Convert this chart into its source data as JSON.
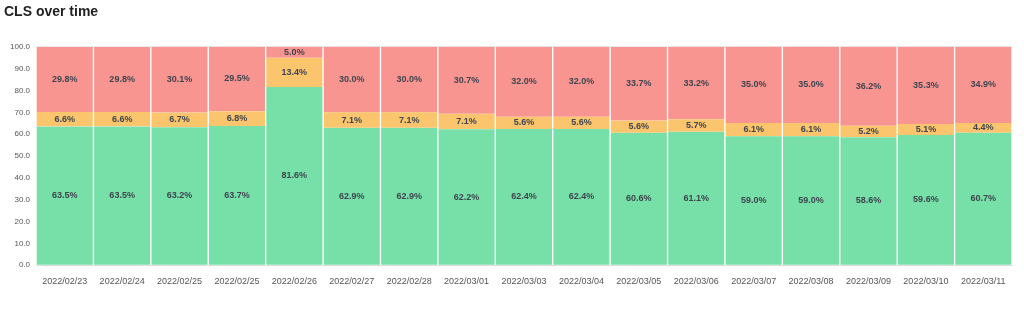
{
  "chart_data": {
    "type": "bar",
    "title": "CLS over time",
    "stacked": true,
    "grid": "y",
    "legend": false,
    "categories": [
      "2022/02/23",
      "2022/02/24",
      "2022/02/25",
      "2022/02/25",
      "2022/02/26",
      "2022/02/27",
      "2022/02/28",
      "2022/03/01",
      "2022/03/03",
      "2022/03/04",
      "2022/03/05",
      "2022/03/06",
      "2022/03/07",
      "2022/03/08",
      "2022/03/09",
      "2022/03/10",
      "2022/03/11"
    ],
    "ylim": [
      0,
      100
    ],
    "yticks": [
      {
        "value": 0,
        "label": "0.0"
      },
      {
        "value": 10,
        "label": "10.0"
      },
      {
        "value": 20,
        "label": "20.0"
      },
      {
        "value": 30,
        "label": "30.0"
      },
      {
        "value": 40,
        "label": "40.0"
      },
      {
        "value": 50,
        "label": "50.0"
      },
      {
        "value": 60,
        "label": "60.0"
      },
      {
        "value": 70,
        "label": "70.0"
      },
      {
        "value": 80,
        "label": "80.0"
      },
      {
        "value": 90,
        "label": "90.0"
      },
      {
        "value": 100,
        "label": "100.0"
      }
    ],
    "series": [
      {
        "color": "#76e0a8",
        "values": [
          63.5,
          63.5,
          63.2,
          63.7,
          81.6,
          62.9,
          62.9,
          62.2,
          62.4,
          62.4,
          60.6,
          61.1,
          59.0,
          59.0,
          58.6,
          59.6,
          60.7
        ],
        "value_labels": [
          "63.5%",
          "63.5%",
          "63.2%",
          "63.7%",
          "81.6%",
          "62.9%",
          "62.9%",
          "62.2%",
          "62.4%",
          "62.4%",
          "60.6%",
          "61.1%",
          "59.0%",
          "59.0%",
          "58.6%",
          "59.6%",
          "60.7%"
        ]
      },
      {
        "color": "#fbc56d",
        "values": [
          6.6,
          6.6,
          6.7,
          6.8,
          13.4,
          7.1,
          7.1,
          7.1,
          5.6,
          5.6,
          5.6,
          5.7,
          6.1,
          6.1,
          5.2,
          5.1,
          4.4
        ],
        "value_labels": [
          "6.6%",
          "6.6%",
          "6.7%",
          "6.8%",
          "13.4%",
          "7.1%",
          "7.1%",
          "7.1%",
          "5.6%",
          "5.6%",
          "5.6%",
          "5.7%",
          "6.1%",
          "6.1%",
          "5.2%",
          "5.1%",
          "4.4%"
        ]
      },
      {
        "color": "#f99590",
        "values": [
          29.8,
          29.8,
          30.1,
          29.5,
          5.0,
          30.0,
          30.0,
          30.7,
          32.0,
          32.0,
          33.7,
          33.2,
          35.0,
          35.0,
          36.2,
          35.3,
          34.9
        ],
        "value_labels": [
          "29.8%",
          "29.8%",
          "30.1%",
          "29.5%",
          "5.0%",
          "30.0%",
          "30.0%",
          "30.7%",
          "32.0%",
          "32.0%",
          "33.7%",
          "33.2%",
          "35.0%",
          "35.0%",
          "36.2%",
          "35.3%",
          "34.9%"
        ]
      }
    ]
  }
}
